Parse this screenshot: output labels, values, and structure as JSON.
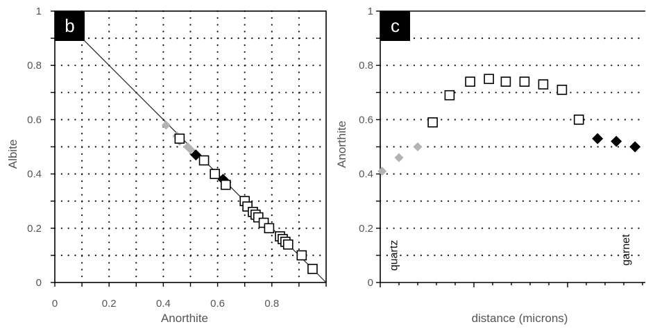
{
  "chart_data": [
    {
      "type": "scatter",
      "panel_label": "b",
      "xlabel": "Anorthite",
      "ylabel": "Albite",
      "xlim": [
        0,
        1
      ],
      "ylim": [
        0,
        1
      ],
      "x_ticks": [
        0,
        0.2,
        0.4,
        0.6,
        0.8
      ],
      "x_tick_labels": [
        "0",
        "0.2",
        "0.4",
        "0.6",
        "0.8"
      ],
      "y_ticks": [
        0,
        0.2,
        0.4,
        0.6,
        0.8,
        1
      ],
      "y_tick_labels": [
        "0",
        "0.2",
        "0.4",
        "0.6",
        "0.8",
        "1"
      ],
      "grid": true,
      "line": {
        "x": [
          0.1,
          1.0
        ],
        "y": [
          0.9,
          0.0
        ],
        "color": "#222222"
      },
      "series": [
        {
          "marker": "diamond",
          "color": "#b3b3b3",
          "x": [
            0.41,
            0.45,
            0.46,
            0.49,
            0.5
          ],
          "y": [
            0.58,
            0.54,
            0.52,
            0.5,
            0.49
          ]
        },
        {
          "marker": "diamond",
          "color": "#000000",
          "x": [
            0.52,
            0.62,
            0.63
          ],
          "y": [
            0.47,
            0.38,
            0.37
          ]
        },
        {
          "marker": "square-open",
          "color": "#000000",
          "x": [
            0.46,
            0.55,
            0.59,
            0.63,
            0.7,
            0.71,
            0.73,
            0.74,
            0.75,
            0.77,
            0.79,
            0.83,
            0.84,
            0.85,
            0.86,
            0.91,
            0.95
          ],
          "y": [
            0.53,
            0.45,
            0.4,
            0.36,
            0.3,
            0.28,
            0.26,
            0.25,
            0.24,
            0.22,
            0.2,
            0.17,
            0.16,
            0.15,
            0.14,
            0.1,
            0.05
          ]
        }
      ]
    },
    {
      "type": "scatter",
      "panel_label": "c",
      "xlabel": "distance (microns)",
      "ylabel": "Anorthite",
      "xlim": [
        0,
        14
      ],
      "ylim": [
        0,
        1
      ],
      "y_ticks": [
        0,
        0.2,
        0.4,
        0.6,
        0.8,
        1
      ],
      "y_tick_labels": [
        "0",
        "0.2",
        "0.4",
        "0.6",
        "0.8",
        "1"
      ],
      "x_tick_count": 15,
      "grid": true,
      "annotations": [
        {
          "text": "quartz",
          "x": 0.9,
          "y": 0.1
        },
        {
          "text": "garnet",
          "x": 13.3,
          "y": 0.12
        }
      ],
      "series": [
        {
          "marker": "diamond",
          "color": "#b3b3b3",
          "x": [
            0.1,
            1.0,
            2.0
          ],
          "y": [
            0.41,
            0.46,
            0.5
          ]
        },
        {
          "marker": "square-open",
          "color": "#000000",
          "x": [
            2.8,
            3.7,
            4.8,
            5.8,
            6.7,
            7.7,
            8.7,
            9.7,
            10.6
          ],
          "y": [
            0.59,
            0.69,
            0.74,
            0.75,
            0.74,
            0.74,
            0.73,
            0.71,
            0.6
          ]
        },
        {
          "marker": "diamond",
          "color": "#000000",
          "x": [
            11.6,
            12.6,
            13.6
          ],
          "y": [
            0.53,
            0.52,
            0.5
          ]
        }
      ]
    }
  ]
}
